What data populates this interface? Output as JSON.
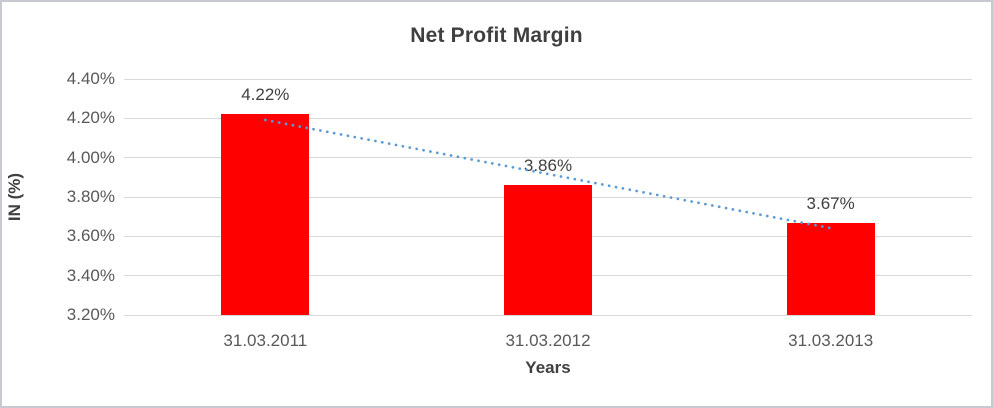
{
  "chart_data": {
    "type": "bar",
    "title": "Net Profit Margin",
    "xlabel": "Years",
    "ylabel": "IN (%)",
    "categories": [
      "31.03.2011",
      "31.03.2012",
      "31.03.2013"
    ],
    "values": [
      4.22,
      3.86,
      3.67
    ],
    "data_labels": [
      "4.22%",
      "3.86%",
      "3.67%"
    ],
    "ylim": [
      3.2,
      4.4
    ],
    "y_ticks": [
      {
        "value": 3.2,
        "label": "3.20%"
      },
      {
        "value": 3.4,
        "label": "3.40%"
      },
      {
        "value": 3.6,
        "label": "3.60%"
      },
      {
        "value": 3.8,
        "label": "3.80%"
      },
      {
        "value": 4.0,
        "label": "4.00%"
      },
      {
        "value": 4.2,
        "label": "4.20%"
      },
      {
        "value": 4.4,
        "label": "4.40%"
      }
    ],
    "grid": true,
    "legend": "none",
    "bar_color": "#ff0000",
    "gridline_color": "#d9d9d9",
    "trendline": {
      "type": "linear",
      "style": "dotted",
      "color": "#5b9bd5"
    }
  }
}
